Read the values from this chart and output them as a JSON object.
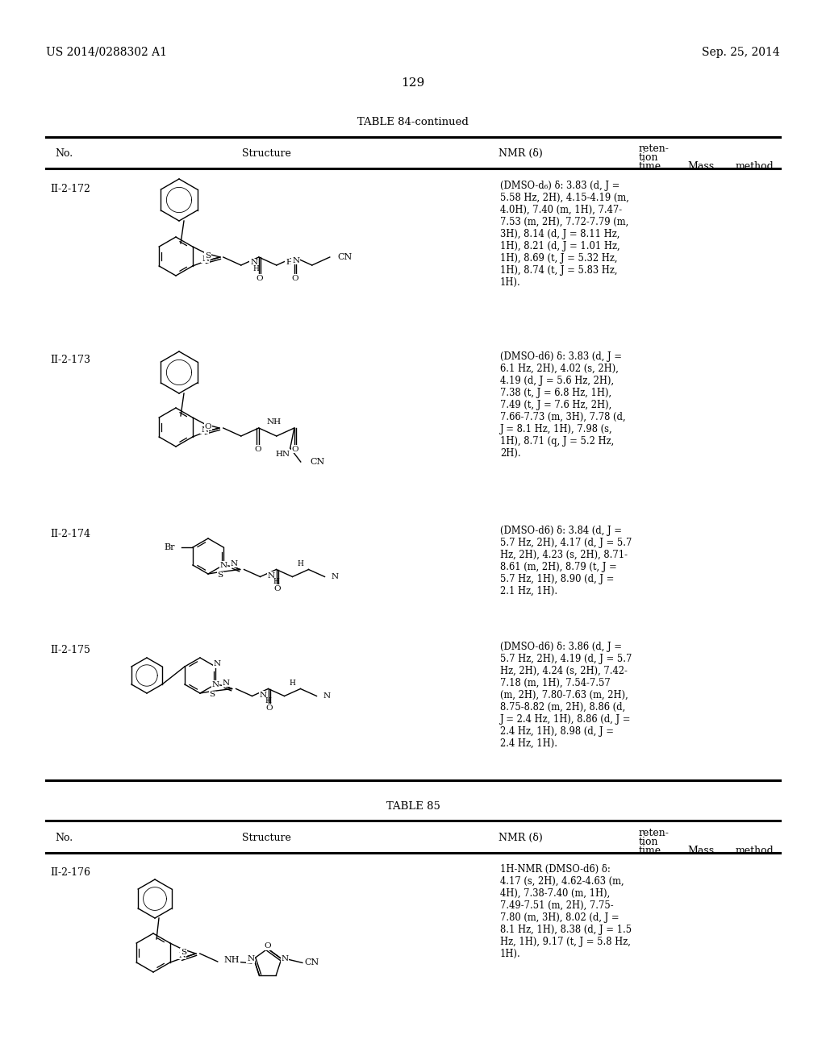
{
  "page_number": "129",
  "patent_number": "US 2014/0288302 A1",
  "patent_date": "Sep. 25, 2014",
  "table1_title": "TABLE 84-continued",
  "table2_title": "TABLE 85",
  "nmr": [
    "(DMSO-d₆) δ: 3.83 (d, J =\n5.58 Hz, 2H), 4.15-4.19 (m,\n4.0H), 7.40 (m, 1H), 7.47-\n7.53 (m, 2H), 7.72-7.79 (m,\n3H), 8.14 (d, J = 8.11 Hz,\n1H), 8.21 (d, J = 1.01 Hz,\n1H), 8.69 (t, J = 5.32 Hz,\n1H), 8.74 (t, J = 5.83 Hz,\n1H).",
    "(DMSO-d6) δ: 3.83 (d, J =\n6.1 Hz, 2H), 4.02 (s, 2H),\n4.19 (d, J = 5.6 Hz, 2H),\n7.38 (t, J = 6.8 Hz, 1H),\n7.49 (t, J = 7.6 Hz, 2H),\n7.66-7.73 (m, 3H), 7.78 (d,\nJ = 8.1 Hz, 1H), 7.98 (s,\n1H), 8.71 (q, J = 5.2 Hz,\n2H).",
    "(DMSO-d6) δ: 3.84 (d, J =\n5.7 Hz, 2H), 4.17 (d, J = 5.7\nHz, 2H), 4.23 (s, 2H), 8.71-\n8.61 (m, 2H), 8.79 (t, J =\n5.7 Hz, 1H), 8.90 (d, J =\n2.1 Hz, 1H).",
    "(DMSO-d6) δ: 3.86 (d, J =\n5.7 Hz, 2H), 4.19 (d, J = 5.7\nHz, 2H), 4.24 (s, 2H), 7.42-\n7.18 (m, 1H), 7.54-7.57\n(m, 2H), 7.80-7.63 (m, 2H),\n8.75-8.82 (m, 2H), 8.86 (d,\nJ = 2.4 Hz, 1H), 8.86 (d, J =\n2.4 Hz, 1H), 8.98 (d, J =\n2.4 Hz, 1H).",
    "1H-NMR (DMSO-d6) δ:\n4.17 (s, 2H), 4.62-4.63 (m,\n4H), 7.38-7.40 (m, 1H),\n7.49-7.51 (m, 2H), 7.75-\n7.80 (m, 3H), 8.02 (d, J =\n8.1 Hz, 1H), 8.38 (d, J = 1.5\nHz, 1H), 9.17 (t, J = 5.8 Hz,\n1H)."
  ],
  "nos": [
    "II-2-172",
    "II-2-173",
    "II-2-174",
    "II-2-175",
    "II-2-176"
  ]
}
